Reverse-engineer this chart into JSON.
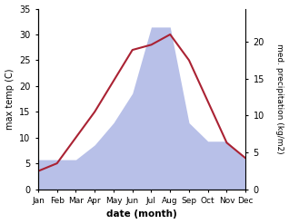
{
  "months": [
    "Jan",
    "Feb",
    "Mar",
    "Apr",
    "May",
    "Jun",
    "Jul",
    "Aug",
    "Sep",
    "Oct",
    "Nov",
    "Dec"
  ],
  "temperature": [
    3.5,
    5.0,
    10.0,
    15.0,
    21.0,
    27.0,
    28.0,
    30.0,
    25.0,
    17.0,
    9.0,
    6.0
  ],
  "precipitation": [
    4.0,
    4.0,
    4.0,
    6.0,
    9.0,
    13.0,
    22.0,
    22.0,
    9.0,
    6.5,
    6.5,
    4.0
  ],
  "temp_color": "#aa2233",
  "precip_fill_color": "#b8c0e8",
  "precip_line_color": "#b8c0e8",
  "temp_ylim": [
    0,
    35
  ],
  "precip_ylim": [
    0,
    24.5
  ],
  "temp_yticks": [
    0,
    5,
    10,
    15,
    20,
    25,
    30,
    35
  ],
  "precip_yticks": [
    0,
    5,
    10,
    15,
    20
  ],
  "xlabel": "date (month)",
  "ylabel_left": "max temp (C)",
  "ylabel_right": "med. precipitation (kg/m2)",
  "background_color": "#ffffff"
}
